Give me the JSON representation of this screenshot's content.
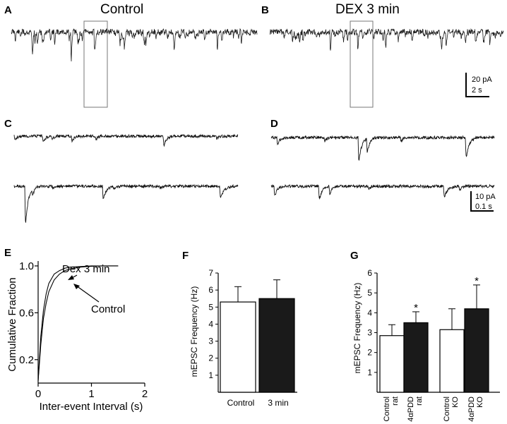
{
  "panels": {
    "A": {
      "label": "A",
      "title": "Control"
    },
    "B": {
      "label": "B",
      "title": "DEX 3 min"
    },
    "C": {
      "label": "C"
    },
    "D": {
      "label": "D"
    },
    "E": {
      "label": "E"
    },
    "F": {
      "label": "F"
    },
    "G": {
      "label": "G"
    }
  },
  "scalebars": {
    "ab": {
      "y_label": "20 pA",
      "x_label": "2 s"
    },
    "cd": {
      "y_label": "10 pA",
      "x_label": "0.1 s"
    }
  },
  "chart_data": [
    {
      "panel": "E",
      "type": "line",
      "xlabel": "Inter-event Interval (s)",
      "ylabel": "Cumulative Fraction",
      "xlim": [
        0,
        2
      ],
      "ylim": [
        0,
        1.0
      ],
      "xticks": [
        "0",
        "1",
        "2"
      ],
      "yticks": [
        "0.2",
        "0.6",
        "1.0"
      ],
      "annotations": [
        "Dex 3 min",
        "Control"
      ],
      "series": [
        {
          "name": "Dex 3 min",
          "x": [
            0,
            0.05,
            0.1,
            0.15,
            0.2,
            0.3,
            0.4,
            0.5,
            0.6,
            0.8,
            1.0,
            1.2,
            1.5
          ],
          "y": [
            0.02,
            0.4,
            0.62,
            0.76,
            0.85,
            0.93,
            0.96,
            0.98,
            0.99,
            0.995,
            1.0,
            1.0,
            1.0
          ]
        },
        {
          "name": "Control",
          "x": [
            0,
            0.05,
            0.1,
            0.15,
            0.2,
            0.3,
            0.4,
            0.5,
            0.6,
            0.8,
            1.0,
            1.2,
            1.5
          ],
          "y": [
            0.02,
            0.33,
            0.55,
            0.68,
            0.78,
            0.88,
            0.93,
            0.96,
            0.975,
            0.99,
            0.997,
            1.0,
            1.0
          ]
        }
      ]
    },
    {
      "panel": "F",
      "type": "bar",
      "ylabel": "mEPSC Frequency (Hz)",
      "ylim": [
        0,
        7
      ],
      "yticks": [
        "1",
        "2",
        "3",
        "4",
        "5",
        "6",
        "7"
      ],
      "categories": [
        "Control",
        "3 min"
      ],
      "values": [
        5.3,
        5.5
      ],
      "errors": [
        0.9,
        1.1
      ],
      "fills": [
        "#ffffff",
        "#1a1a1a"
      ]
    },
    {
      "panel": "G",
      "type": "bar",
      "ylabel": "mEPSC Frequency (Hz)",
      "ylim": [
        0,
        6
      ],
      "yticks": [
        "1",
        "2",
        "3",
        "4",
        "5",
        "6"
      ],
      "categories": [
        [
          "Control",
          "rat"
        ],
        [
          "4αPDD",
          "rat"
        ],
        [
          "Control",
          "KO"
        ],
        [
          "4αPDD",
          "KO"
        ]
      ],
      "values": [
        2.85,
        3.5,
        3.15,
        4.2
      ],
      "errors": [
        0.55,
        0.55,
        1.05,
        1.2
      ],
      "fills": [
        "#ffffff",
        "#1a1a1a",
        "#ffffff",
        "#1a1a1a"
      ],
      "significance": [
        "",
        "*",
        "",
        "*"
      ]
    }
  ]
}
